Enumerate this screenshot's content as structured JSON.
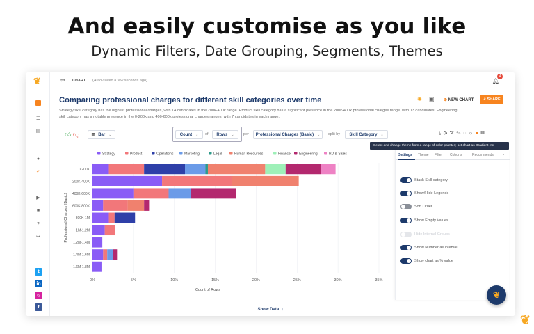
{
  "hero": {
    "headline": "And easily customise as you like",
    "subline": "Dynamic Filters, Date Grouping, Segments, Themes"
  },
  "app": {
    "section_label": "CHART",
    "autosave": "(Auto-saved a few seconds ago)",
    "notification_count": "4",
    "new_chart_label": "NEW CHART",
    "share_label": "SHARE",
    "show_data_label": "Show Data"
  },
  "chart_header": {
    "title": "Comparing professional charges for different skill categories over time",
    "description": "Strategy skill category has the highest professional charges, with 14 candidates in the 200k-400k range. Product skill category has a significant presence in the 200k-400k professional charges range, with 13 candidates. Engineering skill category has a notable presence in the 0-200k and 400-600k professional charges ranges, with 7 candidates in each range."
  },
  "controls": {
    "chart_type": "Bar",
    "measure": "Count",
    "of_label": "of",
    "rows": "Rows",
    "per_label": "per",
    "dimension": "Professional Charges (Basic)",
    "split_label": "split by",
    "split": "Skill Category"
  },
  "tooltip": "Select and change theme from a range of color palettes; set chart as Gradient etc",
  "panel": {
    "tabs": [
      "Settings",
      "Theme",
      "Filter",
      "Cohorts",
      "Recommends"
    ],
    "toggles": [
      {
        "label": "Stack Skill category",
        "on": true
      },
      {
        "label": "Show/Hide Legends",
        "on": true
      },
      {
        "label": "Sort Order",
        "on": false
      },
      {
        "label": "Show Empty Values",
        "on": true
      },
      {
        "label": "Hide Internal Groups",
        "on": false,
        "disabled": true
      },
      {
        "label": "Show Number as interval",
        "on": true
      },
      {
        "label": "Show chart as % value",
        "on": true
      }
    ]
  },
  "colors": {
    "accent": "#1d3a6b",
    "orange": "#f7841f",
    "toggle_on": "#1d3a6b",
    "toggle_off": "#8a8f98"
  },
  "chart_data": {
    "type": "bar",
    "orientation": "horizontal",
    "stacked": true,
    "xlabel": "Count of Rows",
    "ylabel": "Professional Charges (Basic)",
    "xlim": [
      0,
      35
    ],
    "xticks": [
      "0%",
      "5%",
      "10%",
      "15%",
      "20%",
      "25%",
      "30%",
      "35%"
    ],
    "categories": [
      "0-200K",
      "200K-400K",
      "400K-600K",
      "600K-800K",
      "800K-1M",
      "1M-1.2M",
      "1.2M-1.4M",
      "1.4M-1.6M",
      "1.6M-1.8M"
    ],
    "legend_position": "top",
    "series": [
      {
        "name": "Strategy",
        "color": "#8a5cf6",
        "values": [
          2,
          8.5,
          5,
          1.3,
          2,
          1.5,
          1.2,
          1.3,
          1.1
        ]
      },
      {
        "name": "Product",
        "color": "#f2777a",
        "values": [
          4.3,
          8.5,
          4.3,
          3,
          0.7,
          1.3,
          0,
          0.5,
          0
        ]
      },
      {
        "name": "Operations",
        "color": "#2e3fa8",
        "values": [
          5,
          0,
          0,
          0,
          2.5,
          0,
          0,
          0,
          0
        ]
      },
      {
        "name": "Marketing",
        "color": "#6b9be8",
        "values": [
          2.5,
          0,
          2.7,
          0,
          0,
          0,
          0,
          0.7,
          0
        ]
      },
      {
        "name": "Legal",
        "color": "#2d9a8a",
        "values": [
          0.3,
          0,
          0,
          0,
          0,
          0,
          0,
          0,
          0
        ]
      },
      {
        "name": "Human Resources",
        "color": "#f0816e",
        "values": [
          7,
          8.2,
          0,
          2,
          0,
          0,
          0,
          0,
          0
        ]
      },
      {
        "name": "Finance",
        "color": "#9ef0b8",
        "values": [
          2.5,
          0,
          0,
          0,
          0,
          0,
          0,
          0,
          0
        ]
      },
      {
        "name": "Engineering",
        "color": "#b3286e",
        "values": [
          4.3,
          0,
          5.5,
          0.7,
          0,
          0,
          0,
          0.5,
          0
        ]
      },
      {
        "name": "RD & Sales",
        "color": "#ee82c4",
        "values": [
          1.8,
          0,
          0,
          0,
          0,
          0,
          0,
          0,
          0
        ]
      }
    ]
  }
}
